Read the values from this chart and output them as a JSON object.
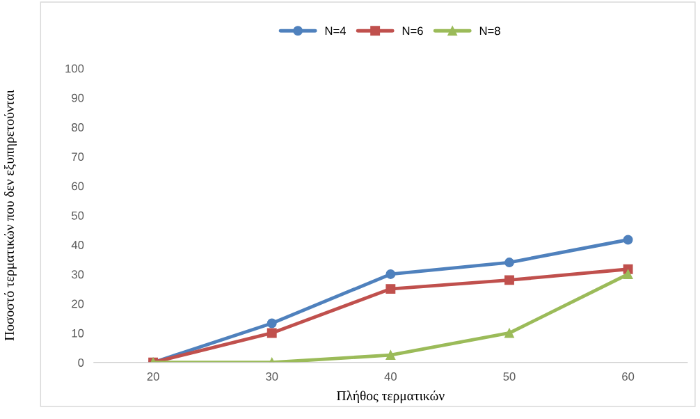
{
  "chart_data": {
    "type": "line",
    "xlabel": "Πλήθος τερματικών",
    "ylabel": "Ποσοστό τερματικών που δεν εξυπηρετούνται",
    "categories": [
      "20",
      "30",
      "40",
      "50",
      "60"
    ],
    "series": [
      {
        "name": "N=4",
        "color": "#4f81bd",
        "marker": "circle",
        "values": [
          0,
          13.3,
          30,
          34,
          41.7
        ]
      },
      {
        "name": "N=6",
        "color": "#c0504d",
        "marker": "square",
        "values": [
          0,
          10,
          25,
          28,
          31.7
        ]
      },
      {
        "name": "N=8",
        "color": "#9bbb59",
        "marker": "triangle",
        "values": [
          0,
          0,
          2.5,
          10,
          30
        ]
      }
    ],
    "ylim": [
      0,
      100
    ],
    "yticks": [
      0,
      10,
      20,
      30,
      40,
      50,
      60,
      70,
      80,
      90,
      100
    ],
    "grid": false,
    "legend": "top",
    "line_style": "solid"
  }
}
